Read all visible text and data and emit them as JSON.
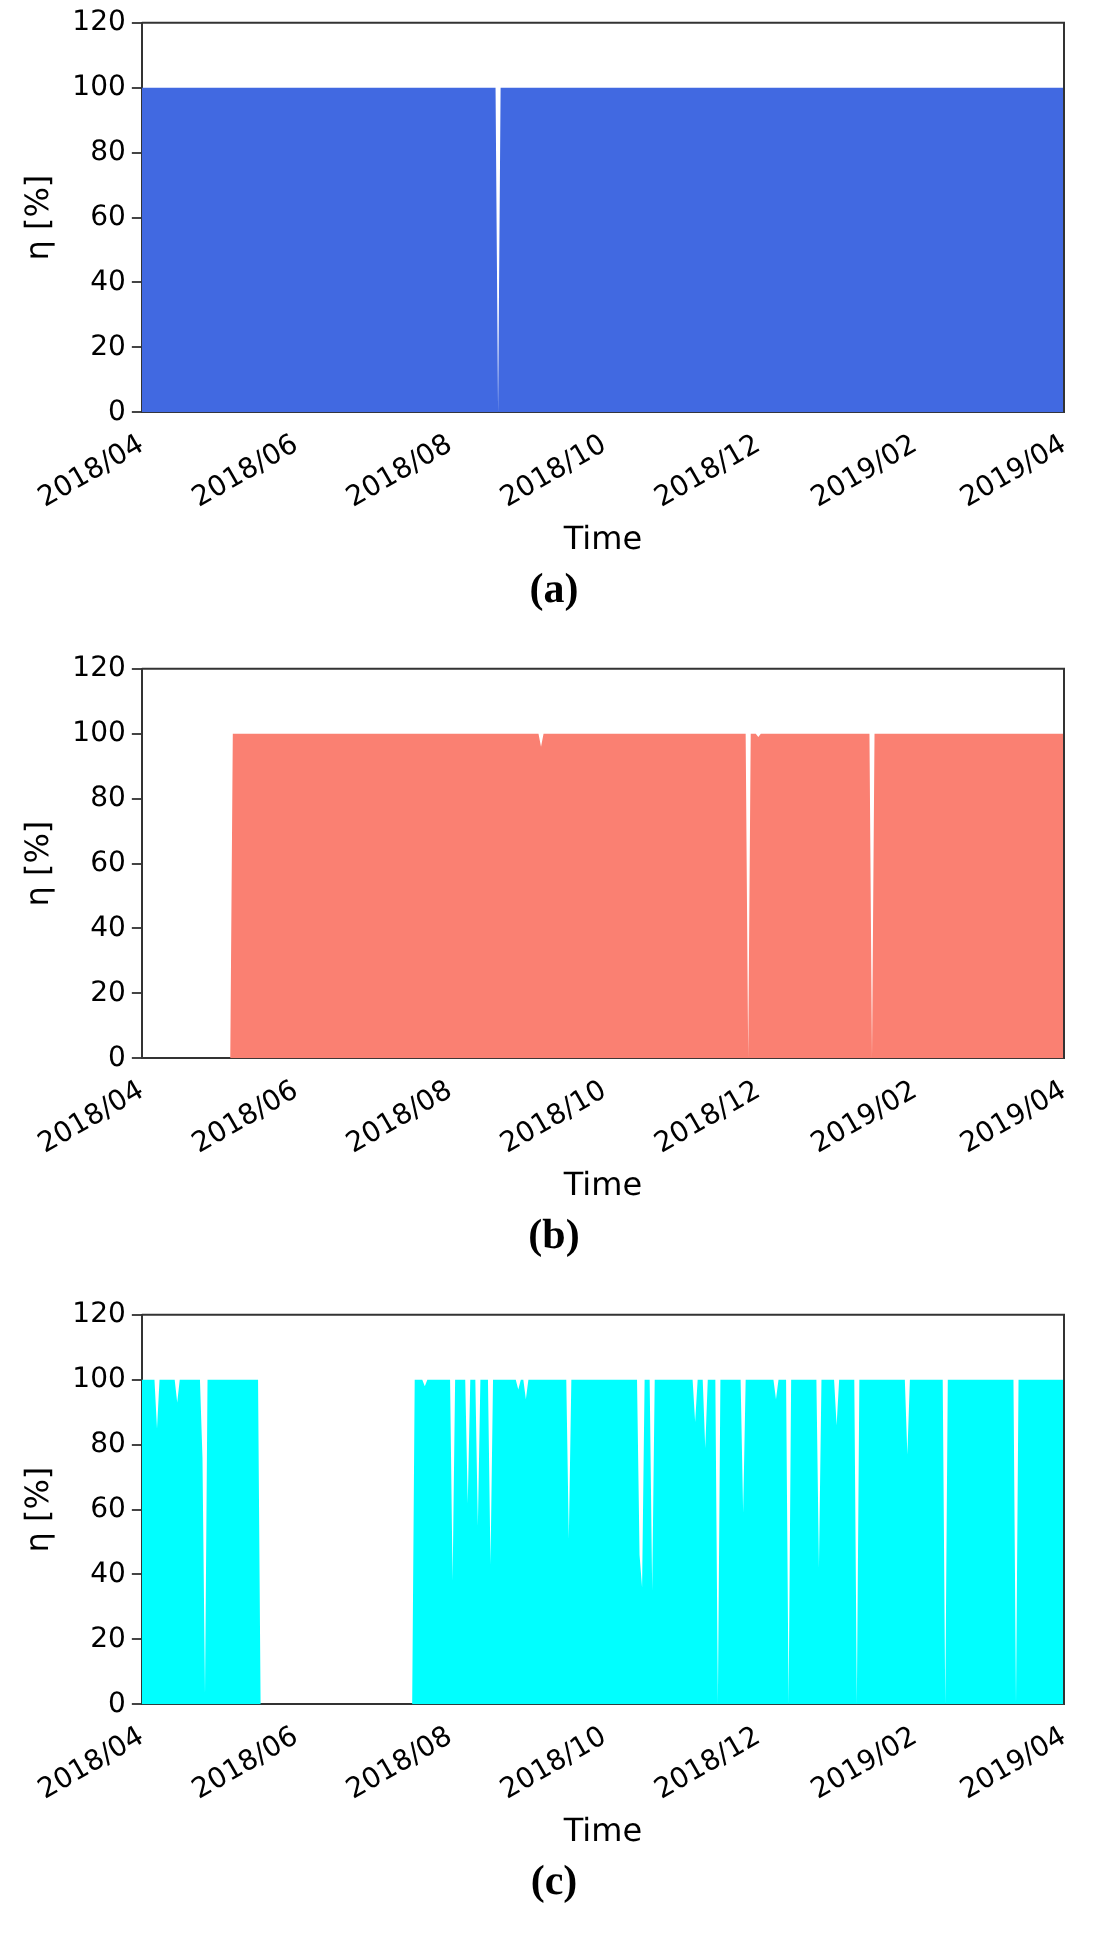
{
  "chart_data": [
    {
      "type": "area",
      "xlabel": "Time",
      "ylabel": "η [%]",
      "annotations": [
        "(a)"
      ],
      "legend": false,
      "grid": false,
      "xlim": [
        "2018-04-01",
        "2019-04-01"
      ],
      "ylim": [
        0,
        120
      ],
      "yticks": [
        0,
        20,
        40,
        60,
        80,
        100,
        120
      ],
      "xticks": [
        {
          "value": "2018-04-01",
          "label": "2018/04"
        },
        {
          "value": "2018-06-01",
          "label": "2018/06"
        },
        {
          "value": "2018-08-01",
          "label": "2018/08"
        },
        {
          "value": "2018-10-01",
          "label": "2018/10"
        },
        {
          "value": "2018-12-01",
          "label": "2018/12"
        },
        {
          "value": "2019-02-01",
          "label": "2019/02"
        },
        {
          "value": "2019-04-01",
          "label": "2019/04"
        }
      ],
      "x": [
        "2018-04-01",
        "2018-08-19",
        "2018-08-20",
        "2018-08-21",
        "2019-04-01"
      ],
      "series": [
        {
          "color": "#4169e1",
          "values": [
            100,
            100,
            0,
            100,
            100
          ]
        }
      ]
    },
    {
      "type": "area",
      "xlabel": "Time",
      "ylabel": "η [%]",
      "annotations": [
        "(b)"
      ],
      "legend": false,
      "grid": false,
      "xlim": [
        "2018-04-01",
        "2019-04-01"
      ],
      "ylim": [
        0,
        120
      ],
      "yticks": [
        0,
        20,
        40,
        60,
        80,
        100,
        120
      ],
      "xticks": [
        {
          "value": "2018-04-01",
          "label": "2018/04"
        },
        {
          "value": "2018-06-01",
          "label": "2018/06"
        },
        {
          "value": "2018-08-01",
          "label": "2018/08"
        },
        {
          "value": "2018-10-01",
          "label": "2018/10"
        },
        {
          "value": "2018-12-01",
          "label": "2018/12"
        },
        {
          "value": "2019-02-01",
          "label": "2019/02"
        },
        {
          "value": "2019-04-01",
          "label": "2019/04"
        }
      ],
      "x": [
        "2018-04-01",
        "2018-05-06",
        "2018-05-07",
        "2018-09-05",
        "2018-09-06",
        "2018-09-07",
        "2018-11-26",
        "2018-11-27",
        "2018-11-28",
        "2018-11-30",
        "2018-12-01",
        "2018-12-02",
        "2019-01-14",
        "2019-01-15",
        "2019-01-16",
        "2019-04-01"
      ],
      "series": [
        {
          "color": "#fa8072",
          "values": [
            0,
            0,
            100,
            100,
            96,
            100,
            100,
            0,
            100,
            100,
            99,
            100,
            100,
            0,
            100,
            100
          ]
        }
      ]
    },
    {
      "type": "area",
      "xlabel": "Time",
      "ylabel": "η [%]",
      "annotations": [
        "(c)"
      ],
      "legend": false,
      "grid": false,
      "xlim": [
        "2018-04-01",
        "2019-04-01"
      ],
      "ylim": [
        0,
        120
      ],
      "yticks": [
        0,
        20,
        40,
        60,
        80,
        100,
        120
      ],
      "xticks": [
        {
          "value": "2018-04-01",
          "label": "2018/04"
        },
        {
          "value": "2018-06-01",
          "label": "2018/06"
        },
        {
          "value": "2018-08-01",
          "label": "2018/08"
        },
        {
          "value": "2018-10-01",
          "label": "2018/10"
        },
        {
          "value": "2018-12-01",
          "label": "2018/12"
        },
        {
          "value": "2019-02-01",
          "label": "2019/02"
        },
        {
          "value": "2019-04-01",
          "label": "2019/04"
        }
      ],
      "x": [
        "2018-04-01",
        "2018-04-06",
        "2018-04-07",
        "2018-04-08",
        "2018-04-14",
        "2018-04-15",
        "2018-04-16",
        "2018-04-24",
        "2018-04-25",
        "2018-04-26",
        "2018-04-27",
        "2018-05-17",
        "2018-05-18",
        "2018-07-17",
        "2018-07-18",
        "2018-07-21",
        "2018-07-22",
        "2018-07-23",
        "2018-08-01",
        "2018-08-02",
        "2018-08-03",
        "2018-08-07",
        "2018-08-08",
        "2018-08-09",
        "2018-08-11",
        "2018-08-12",
        "2018-08-13",
        "2018-08-16",
        "2018-08-17",
        "2018-08-18",
        "2018-08-27",
        "2018-08-28",
        "2018-08-29",
        "2018-08-30",
        "2018-08-31",
        "2018-09-01",
        "2018-09-16",
        "2018-09-17",
        "2018-09-18",
        "2018-10-14",
        "2018-10-15",
        "2018-10-16",
        "2018-10-17",
        "2018-10-19",
        "2018-10-20",
        "2018-10-21",
        "2018-11-05",
        "2018-11-06",
        "2018-11-07",
        "2018-11-09",
        "2018-11-10",
        "2018-11-11",
        "2018-11-14",
        "2018-11-15",
        "2018-11-16",
        "2018-11-24",
        "2018-11-25",
        "2018-11-26",
        "2018-12-07",
        "2018-12-08",
        "2018-12-09",
        "2018-12-12",
        "2018-12-13",
        "2018-12-14",
        "2018-12-24",
        "2018-12-25",
        "2018-12-26",
        "2018-12-31",
        "2019-01-01",
        "2019-01-02",
        "2019-01-08",
        "2019-01-09",
        "2019-01-10",
        "2019-01-28",
        "2019-01-29",
        "2019-01-30",
        "2019-02-12",
        "2019-02-13",
        "2019-02-14",
        "2019-03-12",
        "2019-03-13",
        "2019-03-14",
        "2019-04-01"
      ],
      "series": [
        {
          "color": "#00ffff",
          "values": [
            100,
            100,
            85,
            100,
            100,
            93,
            100,
            100,
            76,
            3,
            100,
            100,
            0,
            0,
            100,
            100,
            98,
            100,
            100,
            38,
            100,
            100,
            62,
            100,
            100,
            55,
            100,
            100,
            43,
            100,
            100,
            97,
            100,
            100,
            94,
            100,
            100,
            51,
            100,
            100,
            46,
            36,
            100,
            100,
            35,
            100,
            100,
            87,
            100,
            100,
            79,
            100,
            100,
            0,
            100,
            100,
            59,
            100,
            100,
            94,
            100,
            100,
            0,
            100,
            100,
            42,
            100,
            100,
            86,
            100,
            100,
            0,
            100,
            100,
            77,
            100,
            100,
            0,
            100,
            100,
            0,
            100,
            100
          ]
        }
      ]
    }
  ]
}
